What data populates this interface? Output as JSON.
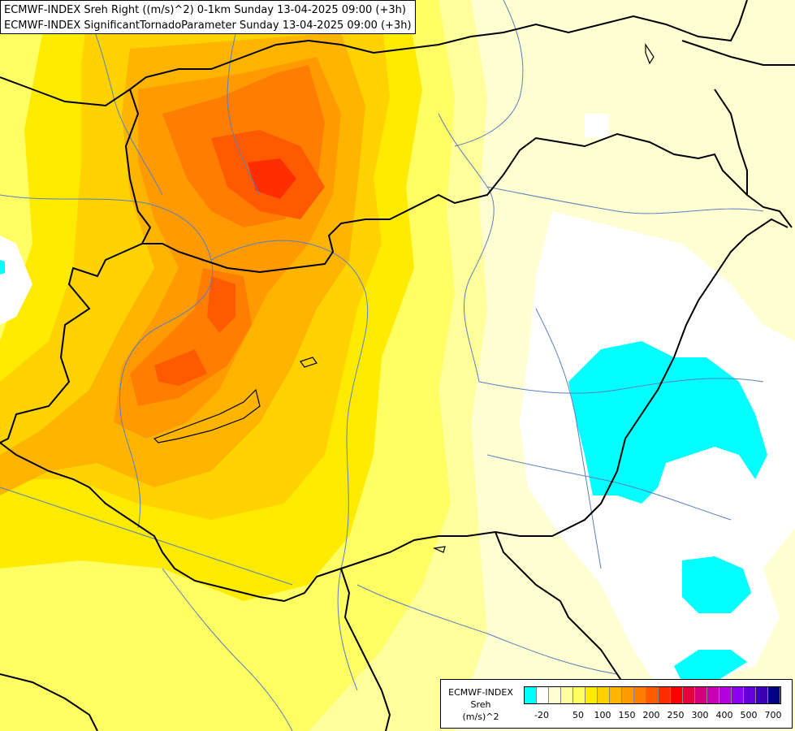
{
  "title": {
    "line1": "ECMWF-INDEX Sreh Right ((m/s)^2) 0-1km Sunday 13-04-2025 09:00 (+3h)",
    "line2": "ECMWF-INDEX SignificantTornadoParameter Sunday 13-04-2025 09:00 (+3h)"
  },
  "legend": {
    "product_line1": "ECMWF-INDEX",
    "product_line2": "Sreh",
    "product_line3": "(m/s)^2",
    "colors": [
      "#00ffff",
      "#ffffff",
      "#ffffd2",
      "#ffff9b",
      "#ffff64",
      "#ffeb00",
      "#ffd200",
      "#ffb400",
      "#ff9b00",
      "#ff7d00",
      "#ff5a00",
      "#ff2d00",
      "#ff0000",
      "#e6003c",
      "#d20078",
      "#c800b4",
      "#b400dc",
      "#8c00f0",
      "#6400dc",
      "#3c00b4",
      "#000080"
    ],
    "labels": [
      "-20",
      "50",
      "100",
      "150",
      "200",
      "250",
      "300",
      "400",
      "500",
      "700"
    ]
  },
  "colors": {
    "cyan": "#00ffff",
    "white": "#ffffff",
    "pale": "#ffffd2",
    "light_yellow": "#ffff9b",
    "yellow": "#ffff64",
    "gold": "#ffeb00",
    "golden": "#ffd200",
    "orange_light": "#ffb400",
    "orange": "#ff9b00",
    "orange_dark": "#ff7d00",
    "red_orange": "#ff5a00",
    "red": "#ff2d00"
  }
}
